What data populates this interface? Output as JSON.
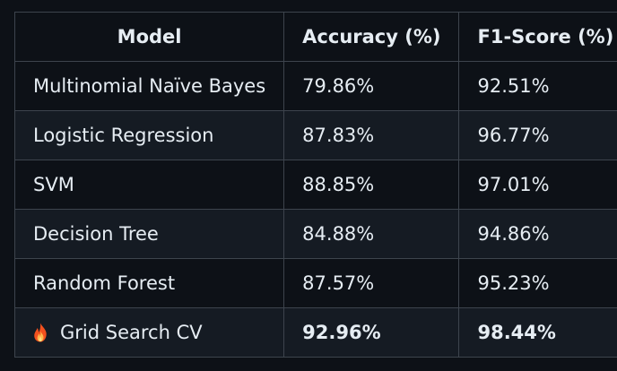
{
  "table": {
    "headers": [
      "Model",
      "Accuracy (%)",
      "F1-Score (%)"
    ],
    "rows": [
      {
        "model": "Multinomial Naïve Bayes",
        "accuracy": "79.86%",
        "f1": "92.51%"
      },
      {
        "model": "Logistic Regression",
        "accuracy": "87.83%",
        "f1": "96.77%"
      },
      {
        "model": "SVM",
        "accuracy": "88.85%",
        "f1": "97.01%"
      },
      {
        "model": "Decision Tree",
        "accuracy": "84.88%",
        "f1": "94.86%"
      },
      {
        "model": "Random Forest",
        "accuracy": "87.57%",
        "f1": "95.23%"
      },
      {
        "model": "Grid Search CV",
        "accuracy": "92.96%",
        "f1": "98.44%",
        "icon": "fire-icon"
      }
    ]
  },
  "colors": {
    "background": "#0d1117",
    "row_alt": "#151b23",
    "border": "#3d444d",
    "text": "#e6edf3"
  }
}
